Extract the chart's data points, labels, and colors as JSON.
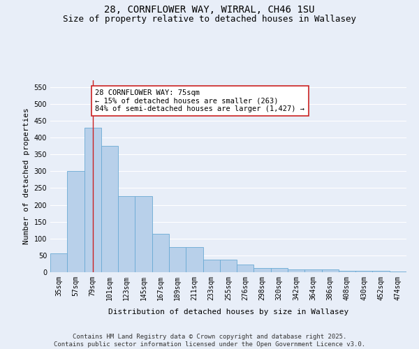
{
  "title_line1": "28, CORNFLOWER WAY, WIRRAL, CH46 1SU",
  "title_line2": "Size of property relative to detached houses in Wallasey",
  "xlabel": "Distribution of detached houses by size in Wallasey",
  "ylabel": "Number of detached properties",
  "categories": [
    "35sqm",
    "57sqm",
    "79sqm",
    "101sqm",
    "123sqm",
    "145sqm",
    "167sqm",
    "189sqm",
    "211sqm",
    "233sqm",
    "255sqm",
    "276sqm",
    "298sqm",
    "320sqm",
    "342sqm",
    "364sqm",
    "386sqm",
    "408sqm",
    "430sqm",
    "452sqm",
    "474sqm"
  ],
  "values": [
    57,
    300,
    430,
    375,
    225,
    225,
    113,
    75,
    75,
    37,
    37,
    22,
    13,
    13,
    8,
    9,
    9,
    5,
    4,
    4,
    3
  ],
  "bar_color": "#b8d0ea",
  "bar_edge_color": "#6aaad4",
  "vline_x": 2,
  "vline_color": "#cc2222",
  "annotation_text": "28 CORNFLOWER WAY: 75sqm\n← 15% of detached houses are smaller (263)\n84% of semi-detached houses are larger (1,427) →",
  "annotation_box_color": "#ffffff",
  "annotation_box_edge": "#cc2222",
  "ylim": [
    0,
    570
  ],
  "yticks": [
    0,
    50,
    100,
    150,
    200,
    250,
    300,
    350,
    400,
    450,
    500,
    550
  ],
  "bg_color": "#e8eef8",
  "grid_color": "#ffffff",
  "footer_line1": "Contains HM Land Registry data © Crown copyright and database right 2025.",
  "footer_line2": "Contains public sector information licensed under the Open Government Licence v3.0.",
  "title_fontsize": 10,
  "subtitle_fontsize": 9,
  "axis_label_fontsize": 8,
  "tick_fontsize": 7,
  "annotation_fontsize": 7.5,
  "footer_fontsize": 6.5
}
